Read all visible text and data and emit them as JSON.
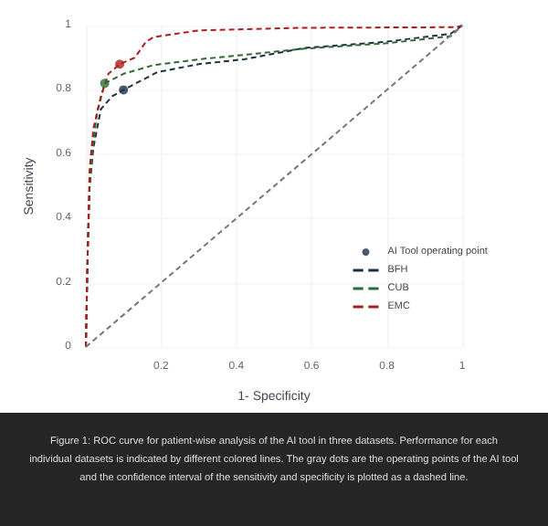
{
  "chart_data": {
    "type": "line",
    "xlabel": "1- Specificity",
    "ylabel": "Sensitivity",
    "xlim": [
      0,
      1
    ],
    "ylim": [
      0,
      1
    ],
    "xticks": [
      {
        "value": 0,
        "label": null
      },
      0.2,
      0.4,
      0.6,
      0.8,
      1
    ],
    "yticks": [
      0,
      0.2,
      0.4,
      0.6,
      0.8,
      1
    ],
    "grid": true,
    "legend": "bottom right",
    "line_style": "dashed",
    "marker": "none",
    "series": [
      {
        "name": "AI Tool operating point",
        "type": "scatter",
        "marker": "circle",
        "color": "#1f2f46",
        "colors": [
          "#1f2f46",
          "#2e6b30",
          "#b01c1c"
        ],
        "x": [
          0.1,
          0.05,
          0.09
        ],
        "values": [
          0.8,
          0.82,
          0.88
        ]
      },
      {
        "name": "BFH",
        "color": "#1f2f46",
        "x": [
          0,
          0.005,
          0.01,
          0.02,
          0.04,
          0.07,
          0.1,
          0.19,
          0.3,
          0.42,
          0.58,
          0.8,
          0.97,
          1
        ],
        "values": [
          0,
          0.3,
          0.5,
          0.62,
          0.74,
          0.78,
          0.8,
          0.855,
          0.88,
          0.895,
          0.93,
          0.95,
          0.975,
          1
        ]
      },
      {
        "name": "CUB",
        "color": "#2e6b30",
        "x": [
          0,
          0.005,
          0.01,
          0.02,
          0.03,
          0.05,
          0.1,
          0.18,
          0.3,
          0.42,
          0.58,
          0.8,
          0.97,
          1
        ],
        "values": [
          0,
          0.3,
          0.5,
          0.64,
          0.73,
          0.82,
          0.85,
          0.877,
          0.895,
          0.909,
          0.928,
          0.945,
          0.967,
          1
        ]
      },
      {
        "name": "EMC",
        "color": "#b01c1c",
        "x": [
          0,
          0.005,
          0.01,
          0.02,
          0.04,
          0.06,
          0.09,
          0.13,
          0.16,
          0.18,
          0.3,
          0.58,
          0.985,
          1
        ],
        "values": [
          0,
          0.3,
          0.55,
          0.68,
          0.78,
          0.85,
          0.88,
          0.9,
          0.95,
          0.964,
          0.985,
          0.993,
          0.995,
          1
        ]
      },
      {
        "color": "#777777",
        "x": [
          0,
          1
        ],
        "values": [
          0,
          1
        ]
      }
    ],
    "annotations": [
      "Figure 1: ROC curve for patient-wise analysis of the AI tool in three datasets. Performance for each individual datasets is indicated by different colored lines. The gray dots are the operating points of the AI tool and the confidence interval of the sensitivity and specificity is plotted as a dashed line."
    ]
  }
}
